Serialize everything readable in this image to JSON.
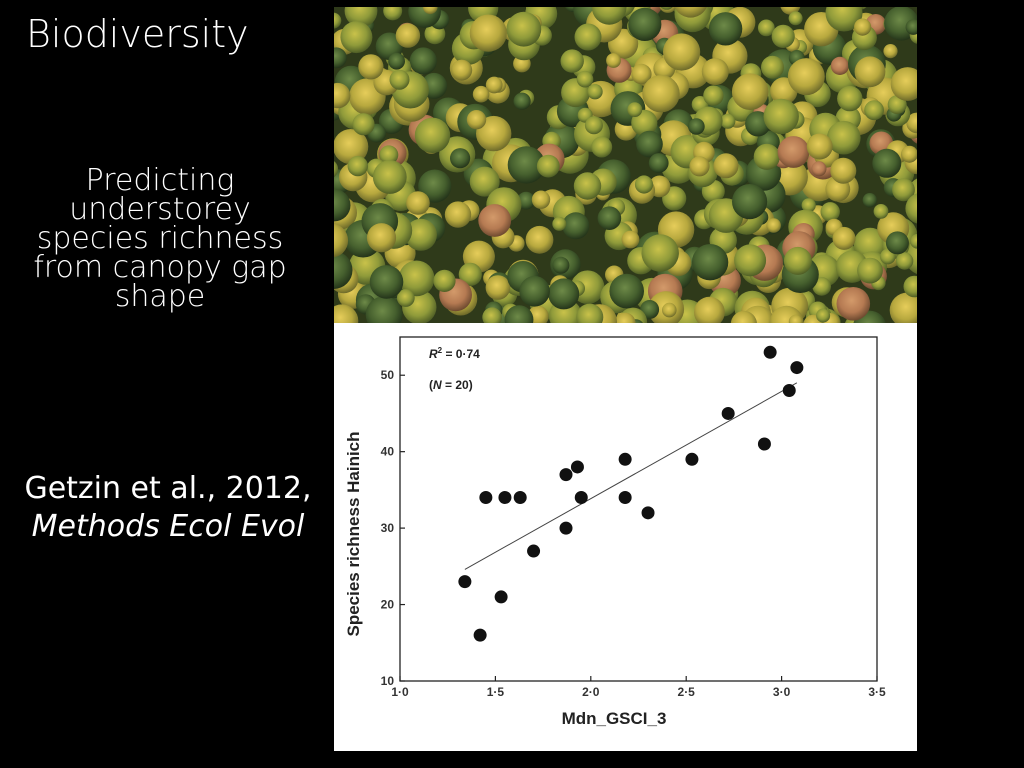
{
  "slide": {
    "title": "Biodiversity",
    "subtitle": "Predicting understorey species richness from canopy gap shape",
    "citation_line1": "Getzin et al., 2012,",
    "citation_journal": "Methods Ecol Evol"
  },
  "photo": {
    "description_icon": "forest-canopy-aerial-photo"
  },
  "chart_data": {
    "type": "scatter",
    "xlabel": "Mdn_GSCI_3",
    "ylabel": "Species richness Hainich",
    "xlim": [
      1.0,
      3.5
    ],
    "ylim": [
      10,
      55
    ],
    "xticks": [
      "1·0",
      "1·5",
      "2·0",
      "2·5",
      "3·0",
      "3·5"
    ],
    "yticks": [
      "10",
      "20",
      "30",
      "40",
      "50"
    ],
    "annotation_r2_prefix": "R",
    "annotation_r2_exp": "2",
    "annotation_r2_value": " = 0·74",
    "annotation_n_open": "(",
    "annotation_n_var": "N",
    "annotation_n_value": " = 20)",
    "points": [
      {
        "x": 1.34,
        "y": 23
      },
      {
        "x": 1.42,
        "y": 16
      },
      {
        "x": 1.45,
        "y": 34
      },
      {
        "x": 1.53,
        "y": 21
      },
      {
        "x": 1.55,
        "y": 34
      },
      {
        "x": 1.63,
        "y": 34
      },
      {
        "x": 1.7,
        "y": 27
      },
      {
        "x": 1.87,
        "y": 37
      },
      {
        "x": 1.87,
        "y": 30
      },
      {
        "x": 1.93,
        "y": 38
      },
      {
        "x": 1.95,
        "y": 34
      },
      {
        "x": 2.18,
        "y": 39
      },
      {
        "x": 2.18,
        "y": 34
      },
      {
        "x": 2.3,
        "y": 32
      },
      {
        "x": 2.53,
        "y": 39
      },
      {
        "x": 2.72,
        "y": 45
      },
      {
        "x": 2.91,
        "y": 41
      },
      {
        "x": 2.94,
        "y": 53
      },
      {
        "x": 3.04,
        "y": 48
      },
      {
        "x": 3.08,
        "y": 51
      }
    ],
    "fit_line": {
      "x": [
        1.34,
        3.08
      ],
      "y": [
        24.6,
        49.0
      ]
    },
    "grid": false,
    "colors": {
      "points": "#111111",
      "line": "#444444",
      "axis": "#222222"
    }
  }
}
